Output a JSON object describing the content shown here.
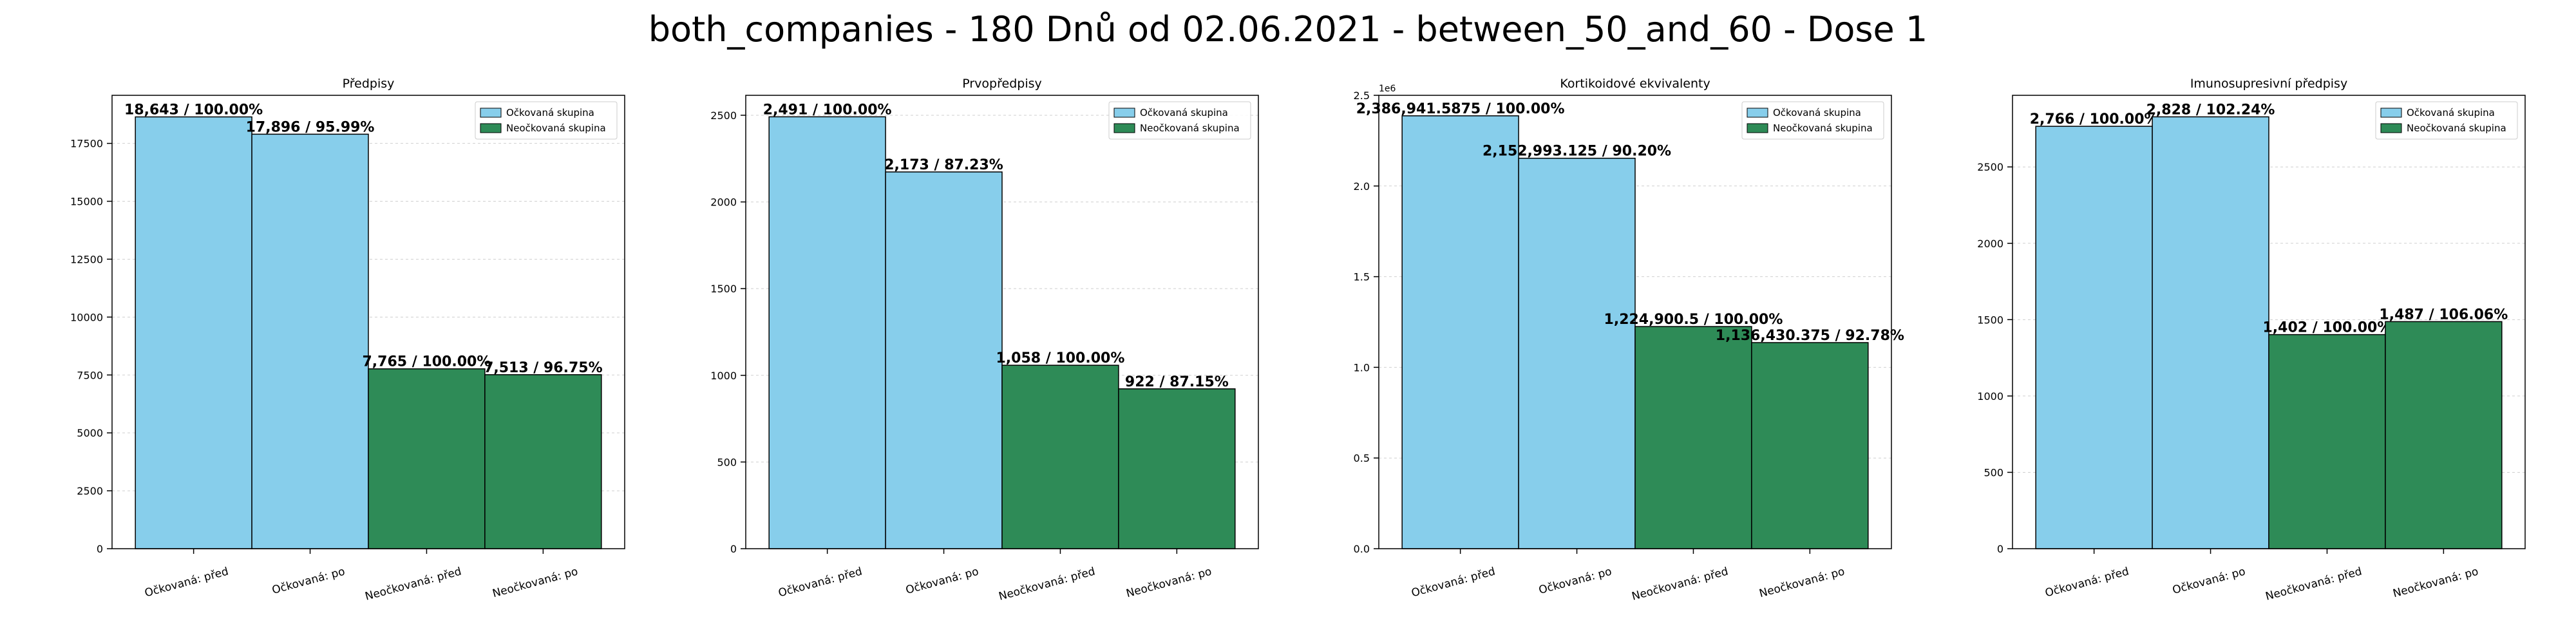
{
  "suptitle": "both_companies - 180 Dnů od 02.06.2021 - between_50_and_60 - Dose 1",
  "colors": {
    "vaccinated": "#87CEEB",
    "unvaccinated": "#2E8B57",
    "edge": "#000000"
  },
  "chart_data": [
    {
      "type": "bar",
      "title": "Předpisy",
      "categories": [
        "Očkovaná: před",
        "Očkovaná: po",
        "Neočkovaná: před",
        "Neočkovaná: po"
      ],
      "values": [
        18643,
        17896,
        7765,
        7513
      ],
      "bar_labels": [
        "18,643 / 100.00%",
        "17,896 / 95.99%",
        "7,765 / 100.00%",
        "7,513 / 96.75%"
      ],
      "bar_groups": [
        "vaccinated",
        "vaccinated",
        "unvaccinated",
        "unvaccinated"
      ],
      "yticks": [
        0,
        2500,
        5000,
        7500,
        10000,
        12500,
        15000,
        17500
      ],
      "ytick_labels": [
        "0",
        "2500",
        "5000",
        "7500",
        "10000",
        "12500",
        "15000",
        "17500"
      ],
      "ylim": [
        0,
        19575
      ],
      "legend": [
        "Očkovaná skupina",
        "Neočkovaná skupina"
      ],
      "legend_position": "top-right",
      "grid": true
    },
    {
      "type": "bar",
      "title": "Prvopředpisy",
      "categories": [
        "Očkovaná: před",
        "Očkovaná: po",
        "Neočkovaná: před",
        "Neočkovaná: po"
      ],
      "values": [
        2491,
        2173,
        1058,
        922
      ],
      "bar_labels": [
        "2,491 / 100.00%",
        "2,173 / 87.23%",
        "1,058 / 100.00%",
        "922 / 87.15%"
      ],
      "bar_groups": [
        "vaccinated",
        "vaccinated",
        "unvaccinated",
        "unvaccinated"
      ],
      "yticks": [
        0,
        500,
        1000,
        1500,
        2000,
        2500
      ],
      "ytick_labels": [
        "0",
        "500",
        "1000",
        "1500",
        "2000",
        "2500"
      ],
      "ylim": [
        0,
        2615
      ],
      "legend": [
        "Očkovaná skupina",
        "Neočkovaná skupina"
      ],
      "legend_position": "top-right",
      "grid": true
    },
    {
      "type": "bar",
      "title": "Kortikoidové ekvivalenty",
      "categories": [
        "Očkovaná: před",
        "Očkovaná: po",
        "Neočkovaná: před",
        "Neočkovaná: po"
      ],
      "values": [
        2386941.5875,
        2152993.125,
        1224900.5,
        1136430.375
      ],
      "bar_labels": [
        "2,386,941.5875 / 100.00%",
        "2,152,993.125 / 90.20%",
        "1,224,900.5 / 100.00%",
        "1,136,430.375 / 92.78%"
      ],
      "bar_groups": [
        "vaccinated",
        "vaccinated",
        "unvaccinated",
        "unvaccinated"
      ],
      "yticks": [
        0,
        500000,
        1000000,
        1500000,
        2000000,
        2500000
      ],
      "ytick_labels": [
        "0.0",
        "0.5",
        "1.0",
        "1.5",
        "2.0",
        "2.5"
      ],
      "offset_label": "1e6",
      "ylim": [
        0,
        2500000
      ],
      "legend": [
        "Očkovaná skupina",
        "Neočkovaná skupina"
      ],
      "legend_position": "top-right",
      "grid": true
    },
    {
      "type": "bar",
      "title": "Imunosupresivní předpisy",
      "categories": [
        "Očkovaná: před",
        "Očkovaná: po",
        "Neočkovaná: před",
        "Neočkovaná: po"
      ],
      "values": [
        2766,
        2828,
        1402,
        1487
      ],
      "bar_labels": [
        "2,766 / 100.00%",
        "2,828 / 102.24%",
        "1,402 / 100.00%",
        "1,487 / 106.06%"
      ],
      "bar_groups": [
        "vaccinated",
        "vaccinated",
        "unvaccinated",
        "unvaccinated"
      ],
      "yticks": [
        0,
        500,
        1000,
        1500,
        2000,
        2500
      ],
      "ytick_labels": [
        "0",
        "500",
        "1000",
        "1500",
        "2000",
        "2500"
      ],
      "ylim": [
        0,
        2969
      ],
      "legend": [
        "Očkovaná skupina",
        "Neočkovaná skupina"
      ],
      "legend_position": "top-right",
      "grid": true
    }
  ]
}
